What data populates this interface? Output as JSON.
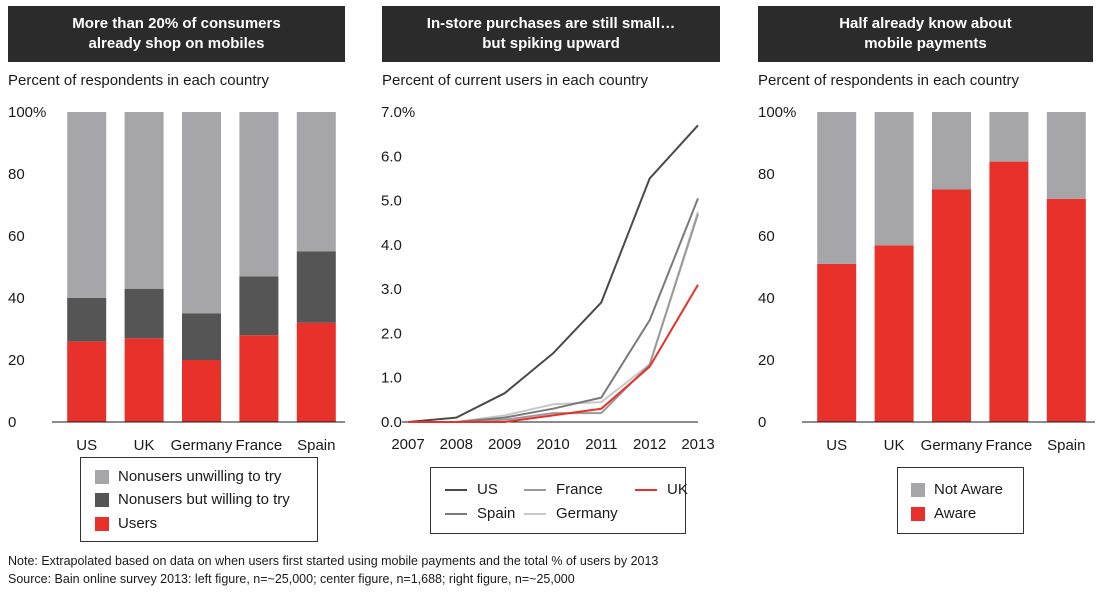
{
  "colors": {
    "banner_bg": "#2b2b2b",
    "users": "#e8312a",
    "willing": "#555555",
    "unwilling": "#a6a6a8",
    "aware": "#e8312a",
    "not_aware": "#a6a6a8",
    "line_us": "#4a4a4a",
    "line_spain": "#7a7a7a",
    "line_france": "#9a9a9a",
    "line_germany": "#c8c8c8",
    "line_uk": "#e8312a"
  },
  "left": {
    "banner": "More than 20% of consumers\nalready shop on mobiles",
    "subtitle": "Percent of respondents in each country",
    "legend": {
      "unwilling": "Nonusers unwilling to try",
      "willing": "Nonusers but willing to try",
      "users": "Users"
    }
  },
  "center": {
    "banner": "In-store purchases are still small…\nbut spiking upward",
    "subtitle": "Percent of current users in each country",
    "legend": {
      "us": "US",
      "france": "France",
      "uk": "UK",
      "spain": "Spain",
      "germany": "Germany"
    }
  },
  "right": {
    "banner": "Half already know about\nmobile payments",
    "subtitle": "Percent of respondents in each country",
    "legend": {
      "not_aware": "Not Aware",
      "aware": "Aware"
    }
  },
  "footer": {
    "note": "Note: Extrapolated based on data on when users first started using mobile payments and the total % of users by 2013",
    "source": "Source: Bain online survey 2013: left figure, n=~25,000; center figure, n=1,688; right figure, n=~25,000"
  },
  "chart_data": [
    {
      "type": "bar",
      "stacked": true,
      "title": "More than 20% of consumers already shop on mobiles",
      "ylabel": "Percent of respondents in each country",
      "categories": [
        "US",
        "UK",
        "Germany",
        "France",
        "Spain"
      ],
      "ylim": [
        0,
        100
      ],
      "yticks": [
        "0",
        "20",
        "40",
        "60",
        "80",
        "100%"
      ],
      "series": [
        {
          "name": "Users",
          "values": [
            26,
            27,
            20,
            28,
            32
          ]
        },
        {
          "name": "Nonusers but willing to try",
          "values": [
            14,
            16,
            15,
            19,
            23
          ]
        },
        {
          "name": "Nonusers unwilling to try",
          "values": [
            60,
            57,
            65,
            53,
            45
          ]
        }
      ],
      "legend": "bottom"
    },
    {
      "type": "line",
      "title": "In-store purchases are still small… but spiking upward",
      "ylabel": "Percent of current users in each country",
      "x": [
        "2007",
        "2008",
        "2009",
        "2010",
        "2011",
        "2012",
        "2013"
      ],
      "ylim": [
        0,
        7
      ],
      "yticks": [
        "0.0",
        "1.0",
        "2.0",
        "3.0",
        "4.0",
        "5.0",
        "6.0",
        "7.0%"
      ],
      "series": [
        {
          "name": "US",
          "values": [
            0.0,
            0.1,
            0.65,
            1.55,
            2.7,
            5.5,
            6.7
          ]
        },
        {
          "name": "Spain",
          "values": [
            0.0,
            0.0,
            0.1,
            0.3,
            0.55,
            2.3,
            5.05
          ]
        },
        {
          "name": "France",
          "values": [
            0.0,
            0.0,
            0.05,
            0.2,
            0.2,
            1.3,
            4.7
          ]
        },
        {
          "name": "Germany",
          "values": [
            0.0,
            0.0,
            0.15,
            0.4,
            0.45,
            1.3,
            4.75
          ]
        },
        {
          "name": "UK",
          "values": [
            0.0,
            0.0,
            0.0,
            0.15,
            0.3,
            1.25,
            3.1
          ]
        }
      ],
      "legend": "bottom"
    },
    {
      "type": "bar",
      "stacked": true,
      "title": "Half already know about mobile payments",
      "ylabel": "Percent of respondents in each country",
      "categories": [
        "US",
        "UK",
        "Germany",
        "France",
        "Spain"
      ],
      "ylim": [
        0,
        100
      ],
      "yticks": [
        "0",
        "20",
        "40",
        "60",
        "80",
        "100%"
      ],
      "series": [
        {
          "name": "Aware",
          "values": [
            51,
            57,
            75,
            84,
            72
          ]
        },
        {
          "name": "Not Aware",
          "values": [
            49,
            43,
            25,
            16,
            28
          ]
        }
      ],
      "legend": "bottom"
    }
  ]
}
